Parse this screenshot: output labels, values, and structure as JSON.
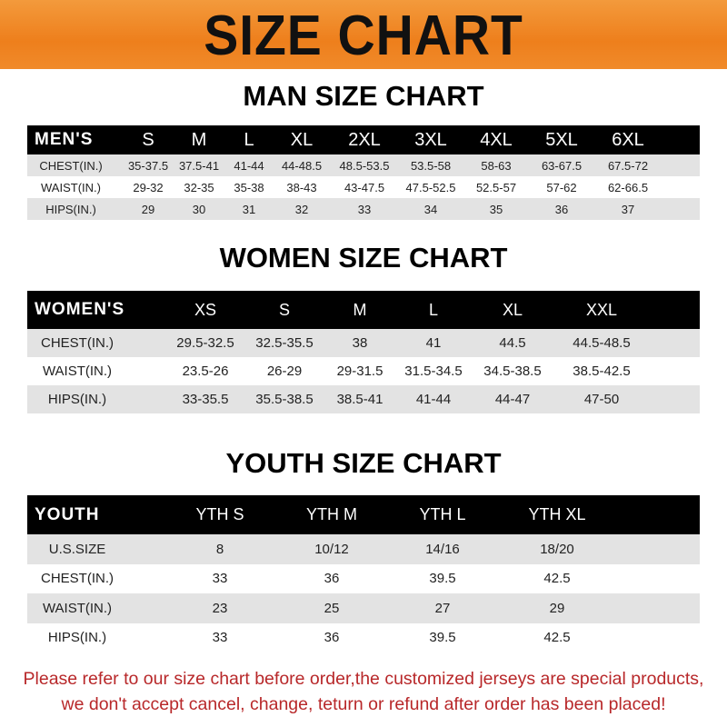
{
  "banner": {
    "title": "SIZE CHART",
    "color": "#ee7f1c"
  },
  "men": {
    "title": "MAN SIZE CHART",
    "header": "MEN'S",
    "sizes": [
      "S",
      "M",
      "L",
      "XL",
      "2XL",
      "3XL",
      "4XL",
      "5XL",
      "6XL"
    ],
    "rows": [
      {
        "label": "CHEST(IN.)",
        "values": [
          "35-37.5",
          "37.5-41",
          "41-44",
          "44-48.5",
          "48.5-53.5",
          "53.5-58",
          "58-63",
          "63-67.5",
          "67.5-72"
        ]
      },
      {
        "label": "WAIST(IN.)",
        "values": [
          "29-32",
          "32-35",
          "35-38",
          "38-43",
          "43-47.5",
          "47.5-52.5",
          "52.5-57",
          "57-62",
          "62-66.5"
        ]
      },
      {
        "label": "HIPS(IN.)",
        "values": [
          "29",
          "30",
          "31",
          "32",
          "33",
          "34",
          "35",
          "36",
          "37"
        ]
      }
    ]
  },
  "women": {
    "title": "WOMEN SIZE CHART",
    "header": "WOMEN'S",
    "sizes": [
      "XS",
      "S",
      "M",
      "L",
      "XL",
      "XXL"
    ],
    "rows": [
      {
        "label": "CHEST(IN.)",
        "values": [
          "29.5-32.5",
          "32.5-35.5",
          "38",
          "41",
          "44.5",
          "44.5-48.5"
        ]
      },
      {
        "label": "WAIST(IN.)",
        "values": [
          "23.5-26",
          "26-29",
          "29-31.5",
          "31.5-34.5",
          "34.5-38.5",
          "38.5-42.5"
        ]
      },
      {
        "label": "HIPS(IN.)",
        "values": [
          "33-35.5",
          "35.5-38.5",
          "38.5-41",
          "41-44",
          "44-47",
          "47-50"
        ]
      }
    ]
  },
  "youth": {
    "title": "YOUTH SIZE CHART",
    "header": "YOUTH",
    "sizes": [
      "YTH S",
      "YTH M",
      "YTH L",
      "YTH XL"
    ],
    "rows": [
      {
        "label": "U.S.SIZE",
        "values": [
          "8",
          "10/12",
          "14/16",
          "18/20"
        ]
      },
      {
        "label": "CHEST(IN.)",
        "values": [
          "33",
          "36",
          "39.5",
          "42.5"
        ]
      },
      {
        "label": "WAIST(IN.)",
        "values": [
          "23",
          "25",
          "27",
          "29"
        ]
      },
      {
        "label": "HIPS(IN.)",
        "values": [
          "33",
          "36",
          "39.5",
          "42.5"
        ]
      }
    ]
  },
  "notice": {
    "line1": "Please refer to our size chart before order,the customized jerseys are special products,",
    "line2": "we don't accept cancel, change, teturn or refund after order has been placed!",
    "color": "#b8282a"
  }
}
